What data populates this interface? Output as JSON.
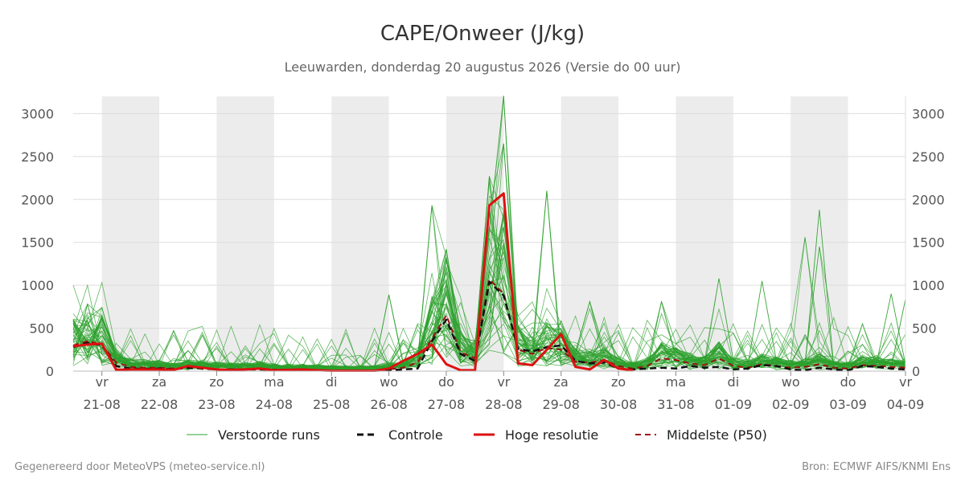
{
  "chart_data": {
    "type": "line",
    "title": "CAPE/Onweer (J/kg)",
    "subtitle": "Leeuwarden, donderdag 20 augustus 2026 (Versie do 00 uur)",
    "xlabel": "",
    "ylabel": "",
    "ylim": [
      0,
      3200
    ],
    "xlim": [
      "2026-08-20T12:00",
      "2026-09-04T00:00"
    ],
    "yticks": [
      "0",
      "500",
      "1000",
      "1500",
      "2000",
      "2500",
      "3000"
    ],
    "xticks": [
      {
        "day": "vr",
        "date": "21-08"
      },
      {
        "day": "za",
        "date": "22-08"
      },
      {
        "day": "zo",
        "date": "23-08"
      },
      {
        "day": "ma",
        "date": "24-08"
      },
      {
        "day": "di",
        "date": "25-08"
      },
      {
        "day": "wo",
        "date": "26-08"
      },
      {
        "day": "do",
        "date": "27-08"
      },
      {
        "day": "vr",
        "date": "28-08"
      },
      {
        "day": "za",
        "date": "29-08"
      },
      {
        "day": "zo",
        "date": "30-08"
      },
      {
        "day": "ma",
        "date": "31-08"
      },
      {
        "day": "di",
        "date": "01-09"
      },
      {
        "day": "wo",
        "date": "02-09"
      },
      {
        "day": "do",
        "date": "03-09"
      },
      {
        "day": "vr",
        "date": "04-09"
      }
    ],
    "grid": true,
    "weekend_shading": true,
    "legend_position": "bottom",
    "series": [
      {
        "name": "Hoge resolutie",
        "color": "#dd1111",
        "style": "solid",
        "points": [
          [
            "2026-08-20T12:00",
            290
          ],
          [
            "2026-08-20T18:00",
            310
          ],
          [
            "2026-08-21T00:00",
            320
          ],
          [
            "2026-08-21T06:00",
            15
          ],
          [
            "2026-08-21T12:00",
            20
          ],
          [
            "2026-08-21T18:00",
            20
          ],
          [
            "2026-08-22T00:00",
            20
          ],
          [
            "2026-08-22T06:00",
            15
          ],
          [
            "2026-08-22T12:00",
            60
          ],
          [
            "2026-08-22T18:00",
            40
          ],
          [
            "2026-08-23T00:00",
            20
          ],
          [
            "2026-08-23T06:00",
            15
          ],
          [
            "2026-08-23T12:00",
            20
          ],
          [
            "2026-08-23T18:00",
            30
          ],
          [
            "2026-08-24T00:00",
            10
          ],
          [
            "2026-08-24T06:00",
            15
          ],
          [
            "2026-08-24T12:00",
            20
          ],
          [
            "2026-08-24T18:00",
            10
          ],
          [
            "2026-08-25T00:00",
            5
          ],
          [
            "2026-08-25T06:00",
            5
          ],
          [
            "2026-08-25T12:00",
            5
          ],
          [
            "2026-08-25T18:00",
            5
          ],
          [
            "2026-08-26T00:00",
            30
          ],
          [
            "2026-08-26T06:00",
            120
          ],
          [
            "2026-08-26T12:00",
            200
          ],
          [
            "2026-08-26T18:00",
            310
          ],
          [
            "2026-08-27T00:00",
            80
          ],
          [
            "2026-08-27T06:00",
            10
          ],
          [
            "2026-08-27T12:00",
            10
          ],
          [
            "2026-08-27T18:00",
            1930
          ],
          [
            "2026-08-28T00:00",
            2070
          ],
          [
            "2026-08-28T06:00",
            90
          ],
          [
            "2026-08-28T12:00",
            70
          ],
          [
            "2026-08-28T18:00",
            250
          ],
          [
            "2026-08-29T00:00",
            430
          ],
          [
            "2026-08-29T06:00",
            50
          ],
          [
            "2026-08-29T12:00",
            20
          ],
          [
            "2026-08-29T18:00",
            130
          ],
          [
            "2026-08-30T00:00",
            30
          ],
          [
            "2026-08-30T06:00",
            10
          ]
        ]
      },
      {
        "name": "Controle",
        "color": "#111111",
        "style": "dashed",
        "points": [
          [
            "2026-08-20T12:00",
            280
          ],
          [
            "2026-08-20T18:00",
            330
          ],
          [
            "2026-08-21T00:00",
            300
          ],
          [
            "2026-08-21T06:00",
            60
          ],
          [
            "2026-08-21T12:00",
            30
          ],
          [
            "2026-08-21T18:00",
            25
          ],
          [
            "2026-08-22T00:00",
            30
          ],
          [
            "2026-08-22T06:00",
            20
          ],
          [
            "2026-08-22T12:00",
            40
          ],
          [
            "2026-08-22T18:00",
            30
          ],
          [
            "2026-08-23T00:00",
            20
          ],
          [
            "2026-08-23T06:00",
            20
          ],
          [
            "2026-08-23T12:00",
            20
          ],
          [
            "2026-08-23T18:00",
            20
          ],
          [
            "2026-08-24T00:00",
            15
          ],
          [
            "2026-08-24T06:00",
            15
          ],
          [
            "2026-08-24T12:00",
            15
          ],
          [
            "2026-08-24T18:00",
            10
          ],
          [
            "2026-08-25T00:00",
            5
          ],
          [
            "2026-08-25T06:00",
            5
          ],
          [
            "2026-08-25T12:00",
            5
          ],
          [
            "2026-08-25T18:00",
            5
          ],
          [
            "2026-08-26T00:00",
            10
          ],
          [
            "2026-08-26T06:00",
            20
          ],
          [
            "2026-08-26T12:00",
            30
          ],
          [
            "2026-08-26T18:00",
            350
          ],
          [
            "2026-08-27T00:00",
            600
          ],
          [
            "2026-08-27T06:00",
            200
          ],
          [
            "2026-08-27T12:00",
            120
          ],
          [
            "2026-08-27T18:00",
            1040
          ],
          [
            "2026-08-28T00:00",
            880
          ],
          [
            "2026-08-28T06:00",
            260
          ],
          [
            "2026-08-28T12:00",
            230
          ],
          [
            "2026-08-28T18:00",
            280
          ],
          [
            "2026-08-29T00:00",
            300
          ],
          [
            "2026-08-29T06:00",
            120
          ],
          [
            "2026-08-29T12:00",
            90
          ],
          [
            "2026-08-29T18:00",
            100
          ],
          [
            "2026-08-30T00:00",
            30
          ],
          [
            "2026-08-30T06:00",
            20
          ],
          [
            "2026-08-30T12:00",
            30
          ],
          [
            "2026-08-30T18:00",
            40
          ],
          [
            "2026-08-31T00:00",
            30
          ],
          [
            "2026-08-31T06:00",
            60
          ],
          [
            "2026-08-31T12:00",
            40
          ],
          [
            "2026-08-31T18:00",
            50
          ],
          [
            "2026-09-01T00:00",
            20
          ],
          [
            "2026-09-01T06:00",
            30
          ],
          [
            "2026-09-01T12:00",
            70
          ],
          [
            "2026-09-01T18:00",
            60
          ],
          [
            "2026-09-02T00:00",
            20
          ],
          [
            "2026-09-02T06:00",
            10
          ],
          [
            "2026-09-02T12:00",
            40
          ],
          [
            "2026-09-02T18:00",
            20
          ],
          [
            "2026-09-03T00:00",
            10
          ],
          [
            "2026-09-03T06:00",
            60
          ],
          [
            "2026-09-03T12:00",
            50
          ],
          [
            "2026-09-03T18:00",
            30
          ],
          [
            "2026-09-04T00:00",
            20
          ]
        ]
      },
      {
        "name": "Middelste (P50)",
        "color": "#991111",
        "style": "dashed",
        "points": [
          [
            "2026-08-20T12:00",
            300
          ],
          [
            "2026-08-20T18:00",
            350
          ],
          [
            "2026-08-21T00:00",
            310
          ],
          [
            "2026-08-21T06:00",
            100
          ],
          [
            "2026-08-21T12:00",
            50
          ],
          [
            "2026-08-21T18:00",
            40
          ],
          [
            "2026-08-22T00:00",
            40
          ],
          [
            "2026-08-22T06:00",
            30
          ],
          [
            "2026-08-22T12:00",
            50
          ],
          [
            "2026-08-22T18:00",
            40
          ],
          [
            "2026-08-23T00:00",
            25
          ],
          [
            "2026-08-23T06:00",
            20
          ],
          [
            "2026-08-23T12:00",
            25
          ],
          [
            "2026-08-23T18:00",
            30
          ],
          [
            "2026-08-24T00:00",
            15
          ],
          [
            "2026-08-24T06:00",
            15
          ],
          [
            "2026-08-24T12:00",
            20
          ],
          [
            "2026-08-24T18:00",
            10
          ],
          [
            "2026-08-25T00:00",
            5
          ],
          [
            "2026-08-25T06:00",
            5
          ],
          [
            "2026-08-25T12:00",
            5
          ],
          [
            "2026-08-25T18:00",
            5
          ],
          [
            "2026-08-26T00:00",
            20
          ],
          [
            "2026-08-26T06:00",
            40
          ],
          [
            "2026-08-26T12:00",
            100
          ],
          [
            "2026-08-26T18:00",
            380
          ],
          [
            "2026-08-27T00:00",
            650
          ],
          [
            "2026-08-27T06:00",
            220
          ],
          [
            "2026-08-27T12:00",
            150
          ],
          [
            "2026-08-27T18:00",
            1070
          ],
          [
            "2026-08-28T00:00",
            900
          ],
          [
            "2026-08-28T06:00",
            250
          ],
          [
            "2026-08-28T12:00",
            200
          ],
          [
            "2026-08-28T18:00",
            270
          ],
          [
            "2026-08-29T00:00",
            250
          ],
          [
            "2026-08-29T06:00",
            110
          ],
          [
            "2026-08-29T12:00",
            100
          ],
          [
            "2026-08-29T18:00",
            130
          ],
          [
            "2026-08-30T00:00",
            60
          ],
          [
            "2026-08-30T06:00",
            30
          ],
          [
            "2026-08-30T12:00",
            60
          ],
          [
            "2026-08-30T18:00",
            150
          ],
          [
            "2026-08-31T00:00",
            130
          ],
          [
            "2026-08-31T06:00",
            90
          ],
          [
            "2026-08-31T12:00",
            70
          ],
          [
            "2026-08-31T18:00",
            150
          ],
          [
            "2026-09-01T00:00",
            60
          ],
          [
            "2026-09-01T06:00",
            40
          ],
          [
            "2026-09-01T12:00",
            80
          ],
          [
            "2026-09-01T18:00",
            60
          ],
          [
            "2026-09-02T00:00",
            40
          ],
          [
            "2026-09-02T06:00",
            50
          ],
          [
            "2026-09-02T12:00",
            80
          ],
          [
            "2026-09-02T18:00",
            40
          ],
          [
            "2026-09-03T00:00",
            30
          ],
          [
            "2026-09-03T06:00",
            70
          ],
          [
            "2026-09-03T12:00",
            60
          ],
          [
            "2026-09-03T18:00",
            50
          ],
          [
            "2026-09-04T00:00",
            40
          ]
        ]
      }
    ],
    "ensemble": {
      "name": "Verstoorde runs",
      "color": "#2ca02c",
      "peaks": [
        [
          "2026-08-20T18:00",
          780
        ],
        [
          "2026-08-21T00:00",
          740
        ],
        [
          "2026-08-22T12:00",
          240
        ],
        [
          "2026-08-26T00:00",
          890
        ],
        [
          "2026-08-26T18:00",
          1930
        ],
        [
          "2026-08-27T00:00",
          1420
        ],
        [
          "2026-08-27T18:00",
          2270
        ],
        [
          "2026-08-28T00:00",
          3210
        ],
        [
          "2026-08-28T00:00",
          2650
        ],
        [
          "2026-08-28T18:00",
          2100
        ],
        [
          "2026-08-29T12:00",
          810
        ],
        [
          "2026-08-30T18:00",
          810
        ],
        [
          "2026-08-31T18:00",
          1080
        ],
        [
          "2026-09-01T12:00",
          1050
        ],
        [
          "2026-09-02T06:00",
          1560
        ],
        [
          "2026-09-02T12:00",
          1880
        ],
        [
          "2026-09-02T12:00",
          1450
        ],
        [
          "2026-09-03T18:00",
          900
        ],
        [
          "2026-09-04T00:00",
          840
        ]
      ]
    }
  },
  "legend": {
    "items": [
      {
        "label": "Verstoorde runs",
        "color": "#2ca02c",
        "style": "thin"
      },
      {
        "label": "Controle",
        "color": "#111111",
        "style": "dashed"
      },
      {
        "label": "Hoge resolutie",
        "color": "#dd1111",
        "style": "solid"
      },
      {
        "label": "Middelste (P50)",
        "color": "#991111",
        "style": "dashed"
      }
    ]
  },
  "footer": {
    "left": "Gegenereerd door MeteoVPS (meteo-service.nl)",
    "right": "Bron: ECMWF AIFS/KNMI Ens"
  }
}
